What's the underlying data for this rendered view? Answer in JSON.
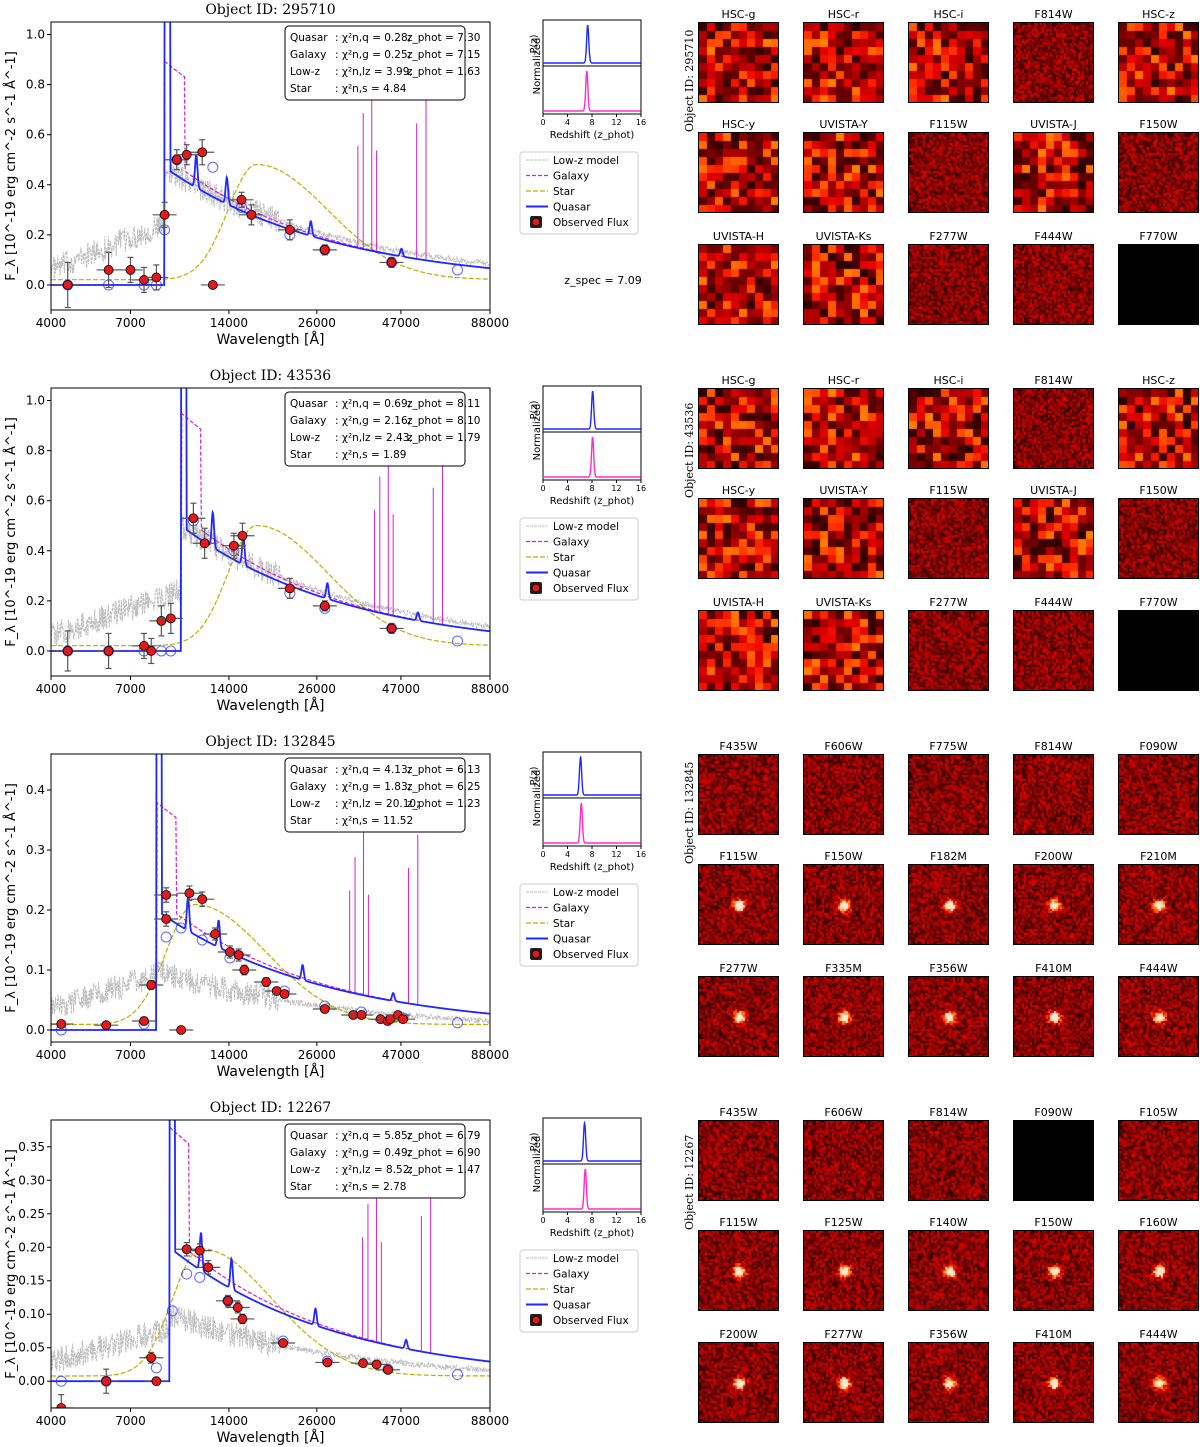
{
  "common": {
    "xlabel": "Wavelength [Å]",
    "ylabel": "F_λ [10^-19 erg cm^-2 s^-1 Å^-1]",
    "xticks": [
      "4000",
      "7000",
      "14000",
      "26000",
      "47000",
      "88000"
    ],
    "pz_ylabel_norm": "Normalized",
    "pz_ylabel_p": "P(z)",
    "pz_xlabel": "Redshift (z_phot)",
    "pz_xticks": [
      "0",
      "4",
      "8",
      "12",
      "16"
    ],
    "legend": [
      "Low-z model",
      "Galaxy",
      "Star",
      "Quasar",
      "Observed Flux"
    ],
    "colors": {
      "lowz": "#bdbdbd",
      "galaxy": "#d61fcf",
      "star": "#b8b000",
      "quasar": "#1f28ff",
      "obs_face": "#e3191c",
      "pz_quasar": "#1f28ff",
      "pz_galaxy": "#ff2bd0"
    }
  },
  "chart_data": [
    {
      "type": "line",
      "title": "Object ID: 295710",
      "ylim": [
        -0.1,
        1.05
      ],
      "yticks": [
        "0.0",
        "0.2",
        "0.4",
        "0.6",
        "0.8",
        "1.0"
      ],
      "fit_box": [
        {
          "label": "Quasar",
          "chi2": "χ²n,q = 0.28",
          "zphot": "z_phot = 7.30"
        },
        {
          "label": "Galaxy",
          "chi2": "χ²n,g = 0.25",
          "zphot": "z_phot = 7.15"
        },
        {
          "label": "Low-z",
          "chi2": "χ²n,lz = 3.99",
          "zphot": "z_phot = 1.63"
        },
        {
          "label": "Star",
          "chi2": "χ²n,s = 4.84",
          "zphot": ""
        }
      ],
      "zspec": "z_spec = 7.09",
      "pz_peaks": {
        "quasar": 7.3,
        "galaxy": 7.15
      },
      "observed": {
        "x": [
          4500,
          6000,
          7000,
          7700,
          8400,
          8900,
          9700,
          10400,
          11600,
          12500,
          15300,
          16400,
          21500,
          27500,
          44000
        ],
        "y": [
          0.0,
          0.06,
          0.06,
          0.02,
          0.03,
          0.28,
          0.5,
          0.52,
          0.53,
          0.0,
          0.34,
          0.28,
          0.22,
          0.14,
          0.09
        ],
        "yerr": [
          0.09,
          0.07,
          0.05,
          0.05,
          0.05,
          0.05,
          0.04,
          0.04,
          0.05,
          0.0,
          0.03,
          0.04,
          0.04,
          0.02,
          0.02
        ]
      },
      "model_flux": {
        "x": [
          4500,
          6000,
          7700,
          8400,
          8900,
          9700,
          12500,
          15300,
          21500,
          27500,
          44000,
          70000
        ],
        "y": [
          0.0,
          0.0,
          0.0,
          0.0,
          0.22,
          0.5,
          0.47,
          0.31,
          0.2,
          0.14,
          0.09,
          0.06
        ]
      },
      "lyman_break": 8900,
      "quasar_level": 0.47,
      "lowz_mode": "rising",
      "star_peak": [
        17000,
        0.46
      ]
    },
    {
      "type": "line",
      "title": "Object ID: 43536",
      "ylim": [
        -0.1,
        1.05
      ],
      "yticks": [
        "0.0",
        "0.2",
        "0.4",
        "0.6",
        "0.8",
        "1.0"
      ],
      "fit_box": [
        {
          "label": "Quasar",
          "chi2": "χ²n,q = 0.69",
          "zphot": "z_phot = 8.11"
        },
        {
          "label": "Galaxy",
          "chi2": "χ²n,g = 2.16",
          "zphot": "z_phot = 8.10"
        },
        {
          "label": "Low-z",
          "chi2": "χ²n,lz = 2.43",
          "zphot": "z_phot = 1.79"
        },
        {
          "label": "Star",
          "chi2": "χ²n,s = 1.89",
          "zphot": ""
        }
      ],
      "zspec": "",
      "pz_peaks": {
        "quasar": 8.11,
        "galaxy": 8.1
      },
      "observed": {
        "x": [
          4500,
          6000,
          7700,
          8100,
          8700,
          9300,
          10900,
          11800,
          14500,
          15400,
          21500,
          27500,
          44000
        ],
        "y": [
          0.0,
          0.0,
          0.02,
          0.0,
          0.12,
          0.13,
          0.53,
          0.43,
          0.42,
          0.46,
          0.25,
          0.18,
          0.09
        ],
        "yerr": [
          0.08,
          0.07,
          0.05,
          0.05,
          0.06,
          0.06,
          0.06,
          0.06,
          0.05,
          0.05,
          0.04,
          0.02,
          0.02
        ]
      },
      "model_flux": {
        "x": [
          4500,
          6000,
          7700,
          8700,
          9300,
          10900,
          14500,
          21500,
          27500,
          44000,
          70000
        ],
        "y": [
          0.0,
          0.0,
          0.0,
          0.0,
          0.0,
          0.52,
          0.4,
          0.23,
          0.17,
          0.09,
          0.04
        ]
      },
      "lyman_break": 10000,
      "quasar_level": 0.5,
      "lowz_mode": "rising",
      "star_peak": [
        17000,
        0.48
      ]
    },
    {
      "type": "line",
      "title": "Object ID: 132845",
      "ylim": [
        -0.02,
        0.46
      ],
      "yticks": [
        "0.0",
        "0.1",
        "0.2",
        "0.3",
        "0.4"
      ],
      "fit_box": [
        {
          "label": "Quasar",
          "chi2": "χ²n,q = 4.13",
          "zphot": "z_phot = 6.13"
        },
        {
          "label": "Galaxy",
          "chi2": "χ²n,g = 1.83",
          "zphot": "z_phot = 6.25"
        },
        {
          "label": "Low-z",
          "chi2": "χ²n,lz = 20.10",
          "zphot": "z_phot = 1.23"
        },
        {
          "label": "Star",
          "chi2": "χ²n,s = 11.52",
          "zphot": ""
        }
      ],
      "zspec": "",
      "pz_peaks": {
        "quasar": 6.13,
        "galaxy": 6.25
      },
      "observed": {
        "x": [
          4300,
          5900,
          7700,
          8100,
          9000,
          9000,
          10000,
          10600,
          11600,
          12700,
          14100,
          15000,
          15600,
          18200,
          19600,
          20700,
          27500,
          33600,
          35600,
          40700,
          42800,
          43600,
          46000,
          47700
        ],
        "y": [
          0.01,
          0.008,
          0.015,
          0.075,
          0.185,
          0.225,
          0.0,
          0.228,
          0.218,
          0.16,
          0.13,
          0.125,
          0.1,
          0.08,
          0.065,
          0.06,
          0.035,
          0.025,
          0.025,
          0.018,
          0.015,
          0.018,
          0.025,
          0.018
        ],
        "yerr": [
          0.006,
          0.005,
          0.006,
          0.007,
          0.012,
          0.012,
          0.0,
          0.012,
          0.012,
          0.01,
          0.01,
          0.01,
          0.008,
          0.007,
          0.006,
          0.006,
          0.004,
          0.004,
          0.004,
          0.003,
          0.003,
          0.003,
          0.003,
          0.003
        ]
      },
      "model_flux": {
        "x": [
          4300,
          7700,
          9000,
          10000,
          11600,
          14100,
          20700,
          27500,
          35600,
          47700,
          70000
        ],
        "y": [
          0.0,
          0.01,
          0.155,
          0.17,
          0.15,
          0.12,
          0.065,
          0.04,
          0.03,
          0.02,
          0.012
        ]
      },
      "lyman_break": 8400,
      "quasar_level": 0.2,
      "lowz_mode": "flat",
      "star_peak": [
        11000,
        0.2
      ]
    },
    {
      "type": "line",
      "title": "Object ID: 12267",
      "ylim": [
        -0.04,
        0.39
      ],
      "yticks": [
        "0.00",
        "0.05",
        "0.10",
        "0.15",
        "0.20",
        "0.25",
        "0.30",
        "0.35"
      ],
      "fit_box": [
        {
          "label": "Quasar",
          "chi2": "χ²n,q = 5.85",
          "zphot": "z_phot = 6.79"
        },
        {
          "label": "Galaxy",
          "chi2": "χ²n,g = 0.49",
          "zphot": "z_phot = 6.90"
        },
        {
          "label": "Low-z",
          "chi2": "χ²n,lz = 8.52",
          "zphot": "z_phot = 1.47"
        },
        {
          "label": "Star",
          "chi2": "χ²n,s = 2.78",
          "zphot": ""
        }
      ],
      "zspec": "",
      "pz_peaks": {
        "quasar": 6.79,
        "galaxy": 6.9
      },
      "observed": {
        "x": [
          4300,
          5900,
          8100,
          8400,
          10400,
          11400,
          12100,
          13900,
          14900,
          15400,
          20500,
          28000,
          36000,
          39600,
          42900
        ],
        "y": [
          -0.04,
          0.0,
          0.035,
          0.0,
          0.197,
          0.195,
          0.17,
          0.12,
          0.11,
          0.093,
          0.057,
          0.028,
          0.027,
          0.025,
          0.017
        ],
        "yerr": [
          0.02,
          0.018,
          0.008,
          0.0,
          0.01,
          0.01,
          0.01,
          0.008,
          0.008,
          0.007,
          0.005,
          0.004,
          0.003,
          0.003,
          0.003
        ]
      },
      "model_flux": {
        "x": [
          4300,
          5900,
          8400,
          9400,
          10400,
          11400,
          13900,
          20500,
          28000,
          42900,
          70000
        ],
        "y": [
          0.0,
          0.0,
          0.02,
          0.105,
          0.16,
          0.155,
          0.12,
          0.06,
          0.03,
          0.018,
          0.01
        ]
      },
      "lyman_break": 9200,
      "quasar_level": 0.2,
      "lowz_mode": "flat",
      "star_peak": [
        11500,
        0.19
      ]
    }
  ],
  "stamps": [
    {
      "object_label": "Object ID: 295710",
      "bands": [
        "HSC-g",
        "HSC-r",
        "HSC-i",
        "F814W",
        "HSC-z",
        "HSC-y",
        "UVISTA-Y",
        "F115W",
        "UVISTA-J",
        "F150W",
        "UVISTA-H",
        "UVISTA-Ks",
        "F277W",
        "F444W",
        "F770W"
      ]
    },
    {
      "object_label": "Object ID: 43536",
      "bands": [
        "HSC-g",
        "HSC-r",
        "HSC-i",
        "F814W",
        "HSC-z",
        "HSC-y",
        "UVISTA-Y",
        "F115W",
        "UVISTA-J",
        "F150W",
        "UVISTA-H",
        "UVISTA-Ks",
        "F277W",
        "F444W",
        "F770W"
      ]
    },
    {
      "object_label": "Object ID: 132845",
      "bands": [
        "F435W",
        "F606W",
        "F775W",
        "F814W",
        "F090W",
        "F115W",
        "F150W",
        "F182M",
        "F200W",
        "F210M",
        "F277W",
        "F335M",
        "F356W",
        "F410M",
        "F444W"
      ]
    },
    {
      "object_label": "Object ID: 12267",
      "bands": [
        "F435W",
        "F606W",
        "F814W",
        "F090W",
        "F105W",
        "F115W",
        "F125W",
        "F140W",
        "F150W",
        "F160W",
        "F200W",
        "F277W",
        "F356W",
        "F410M",
        "F444W"
      ]
    }
  ]
}
